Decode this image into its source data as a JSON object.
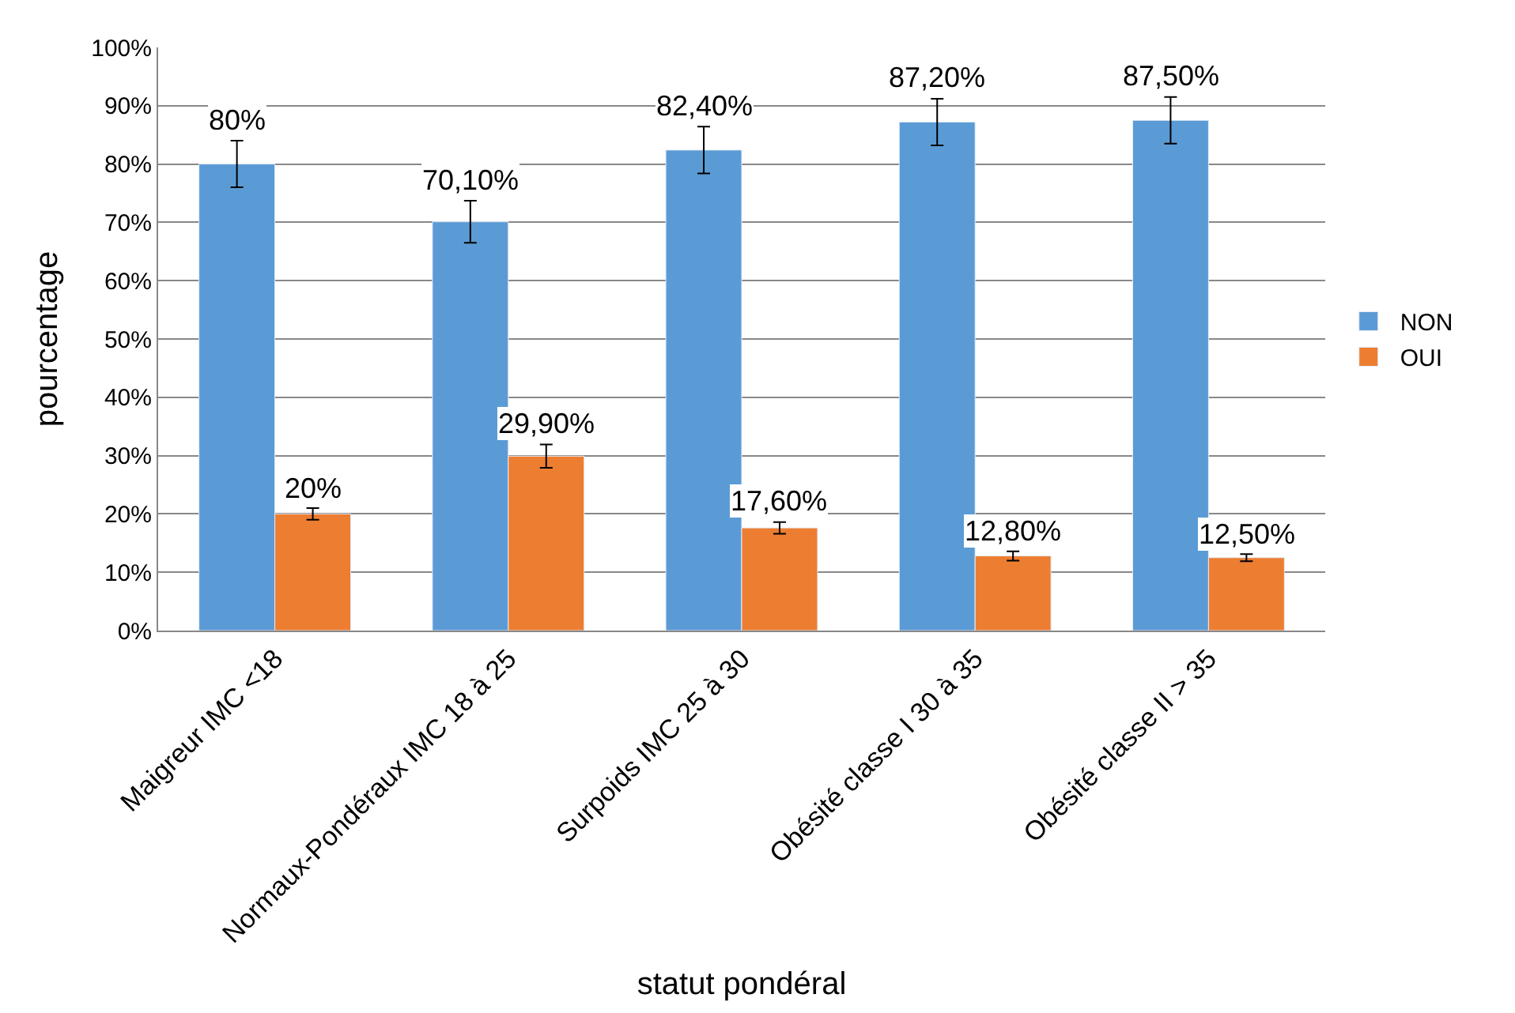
{
  "chart_data": {
    "type": "bar",
    "xlabel": "statut pondéral",
    "ylabel": "pourcentage",
    "categories": [
      "Maigreur IMC <18",
      "Normaux-Pondéraux IMC 18 à 25",
      "Surpoids IMC 25 à 30",
      "Obésité classe I 30 à 35",
      "Obésité classe II > 35"
    ],
    "series": [
      {
        "name": "NON",
        "color": "#5b9bd5",
        "values": [
          80,
          70.1,
          82.4,
          87.2,
          87.5
        ],
        "value_labels": [
          "80%",
          "70,10%",
          "82,40%",
          "87,20%",
          "87,50%"
        ],
        "errors": [
          4,
          3.6,
          4,
          4,
          4
        ]
      },
      {
        "name": "OUI",
        "color": "#ed7d31",
        "values": [
          20,
          29.9,
          17.6,
          12.8,
          12.5
        ],
        "value_labels": [
          "20%",
          "29,90%",
          "17,60%",
          "12,80%",
          "12,50%"
        ],
        "errors": [
          1,
          2,
          1,
          0.8,
          0.6
        ]
      }
    ],
    "ylim": [
      0,
      100
    ],
    "yticks": [
      {
        "value": 0,
        "label": "0%"
      },
      {
        "value": 10,
        "label": "10%"
      },
      {
        "value": 20,
        "label": "20%"
      },
      {
        "value": 30,
        "label": "30%"
      },
      {
        "value": 40,
        "label": "40%"
      },
      {
        "value": 50,
        "label": "50%"
      },
      {
        "value": 60,
        "label": "60%"
      },
      {
        "value": 70,
        "label": "70%"
      },
      {
        "value": 80,
        "label": "80%"
      },
      {
        "value": 90,
        "label": "90%"
      },
      {
        "value": 100,
        "label": "100%"
      }
    ],
    "grid": "y",
    "legend": "right"
  }
}
